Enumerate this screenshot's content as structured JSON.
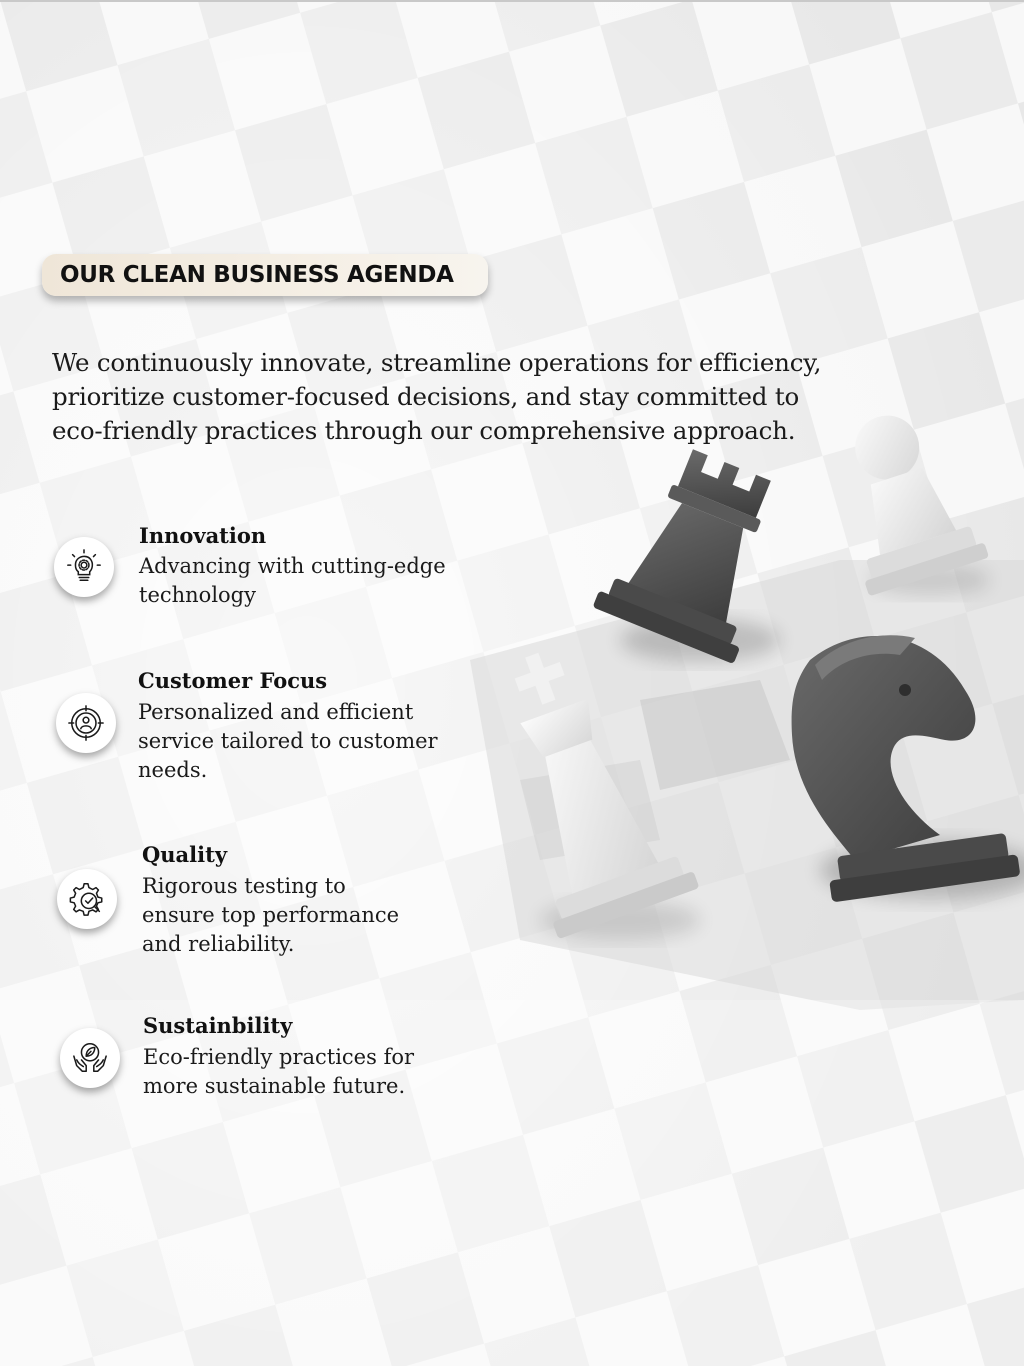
{
  "header": {
    "badge": "OUR CLEAN BUSINESS AGENDA"
  },
  "intro": "We continuously innovate, streamline operations for efficiency, prioritize customer-focused decisions, and stay committed to eco-friendly practices through our comprehensive approach.",
  "features": [
    {
      "title": "Innovation",
      "description": "Advancing with cutting-edge technology",
      "icon": "lightbulb-gear-icon"
    },
    {
      "title": "Customer Focus",
      "description": "Personalized and efficient service tailored to customer needs.",
      "icon": "target-person-icon"
    },
    {
      "title": "Quality",
      "description": "Rigorous testing to ensure top performance and reliability.",
      "icon": "gear-check-icon"
    },
    {
      "title": "Sustainbility",
      "description": "Eco-friendly practices for more sustainable future.",
      "icon": "hands-leaf-icon"
    }
  ],
  "colors": {
    "badge_bg": "#efe6d8",
    "text": "#1a1a1a",
    "dark_piece": "#4e4e4e",
    "light_piece": "#ececec"
  }
}
